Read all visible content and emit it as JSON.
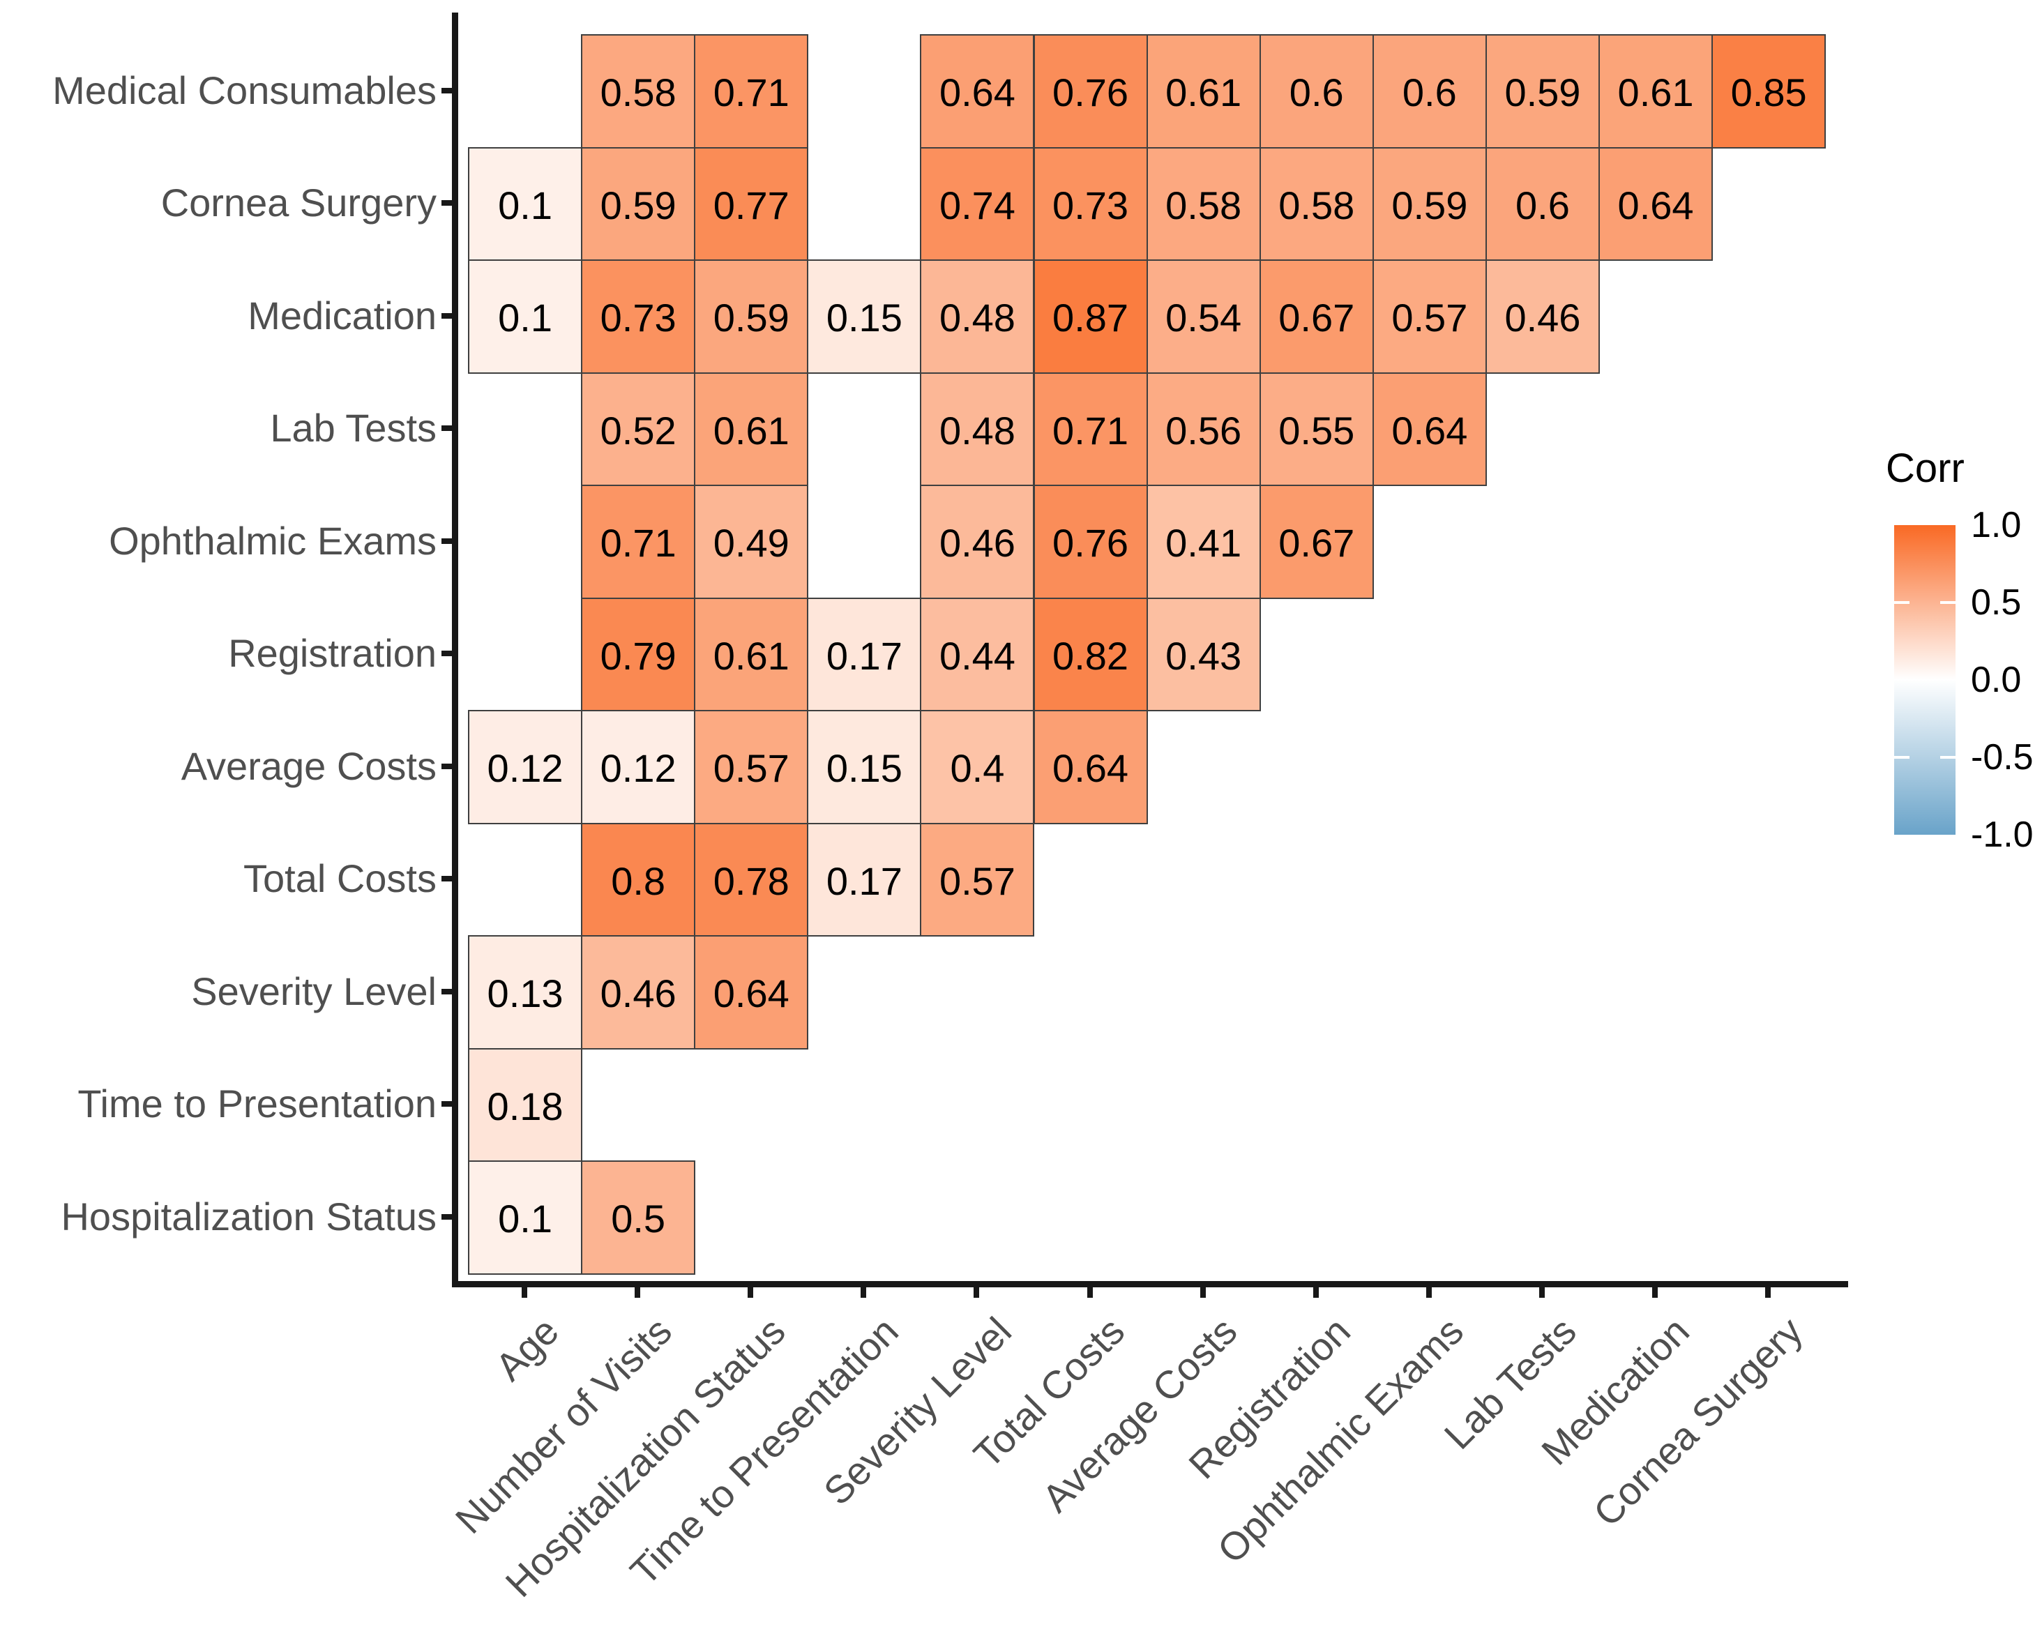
{
  "chart_data": {
    "type": "heatmap",
    "title": "",
    "x_categories": [
      "Age",
      "Number of Visits",
      "Hospitalization Status",
      "Time to Presentation",
      "Severity Level",
      "Total Costs",
      "Average Costs",
      "Registration",
      "Ophthalmic Exams",
      "Lab Tests",
      "Medication",
      "Cornea Surgery"
    ],
    "y_categories": [
      "Medical Consumables",
      "Cornea Surgery",
      "Medication",
      "Lab Tests",
      "Ophthalmic Exams",
      "Registration",
      "Average Costs",
      "Total Costs",
      "Severity Level",
      "Time to Presentation",
      "Hospitalization Status"
    ],
    "matrix": [
      [
        null,
        0.58,
        0.71,
        null,
        0.64,
        0.76,
        0.61,
        0.6,
        0.6,
        0.59,
        0.61,
        0.85
      ],
      [
        0.1,
        0.59,
        0.77,
        null,
        0.74,
        0.73,
        0.58,
        0.58,
        0.59,
        0.6,
        0.64,
        null
      ],
      [
        0.1,
        0.73,
        0.59,
        0.15,
        0.48,
        0.87,
        0.54,
        0.67,
        0.57,
        0.46,
        null,
        null
      ],
      [
        null,
        0.52,
        0.61,
        null,
        0.48,
        0.71,
        0.56,
        0.55,
        0.64,
        null,
        null,
        null
      ],
      [
        null,
        0.71,
        0.49,
        null,
        0.46,
        0.76,
        0.41,
        0.67,
        null,
        null,
        null,
        null
      ],
      [
        null,
        0.79,
        0.61,
        0.17,
        0.44,
        0.82,
        0.43,
        null,
        null,
        null,
        null,
        null
      ],
      [
        0.12,
        0.12,
        0.57,
        0.15,
        0.4,
        0.64,
        null,
        null,
        null,
        null,
        null,
        null
      ],
      [
        null,
        0.8,
        0.78,
        0.17,
        0.57,
        null,
        null,
        null,
        null,
        null,
        null,
        null
      ],
      [
        0.13,
        0.46,
        0.64,
        null,
        null,
        null,
        null,
        null,
        null,
        null,
        null,
        null
      ],
      [
        0.18,
        null,
        null,
        null,
        null,
        null,
        null,
        null,
        null,
        null,
        null,
        null
      ],
      [
        0.1,
        0.5,
        null,
        null,
        null,
        null,
        null,
        null,
        null,
        null,
        null,
        null
      ]
    ],
    "legend": {
      "title": "Corr",
      "tick_labels": [
        "1.0",
        "0.5",
        "0.0",
        "-0.5",
        "-1.0"
      ],
      "range": [
        -1,
        1
      ],
      "position": "right"
    },
    "colors": {
      "high": "#F96924",
      "mid": "#FFFFFF",
      "low": "#69A3C9",
      "cell_border": "#3F3F3F",
      "axis": "#181818",
      "axis_label": "#4F4F4F",
      "value_text": "#000000"
    },
    "grid": false
  }
}
